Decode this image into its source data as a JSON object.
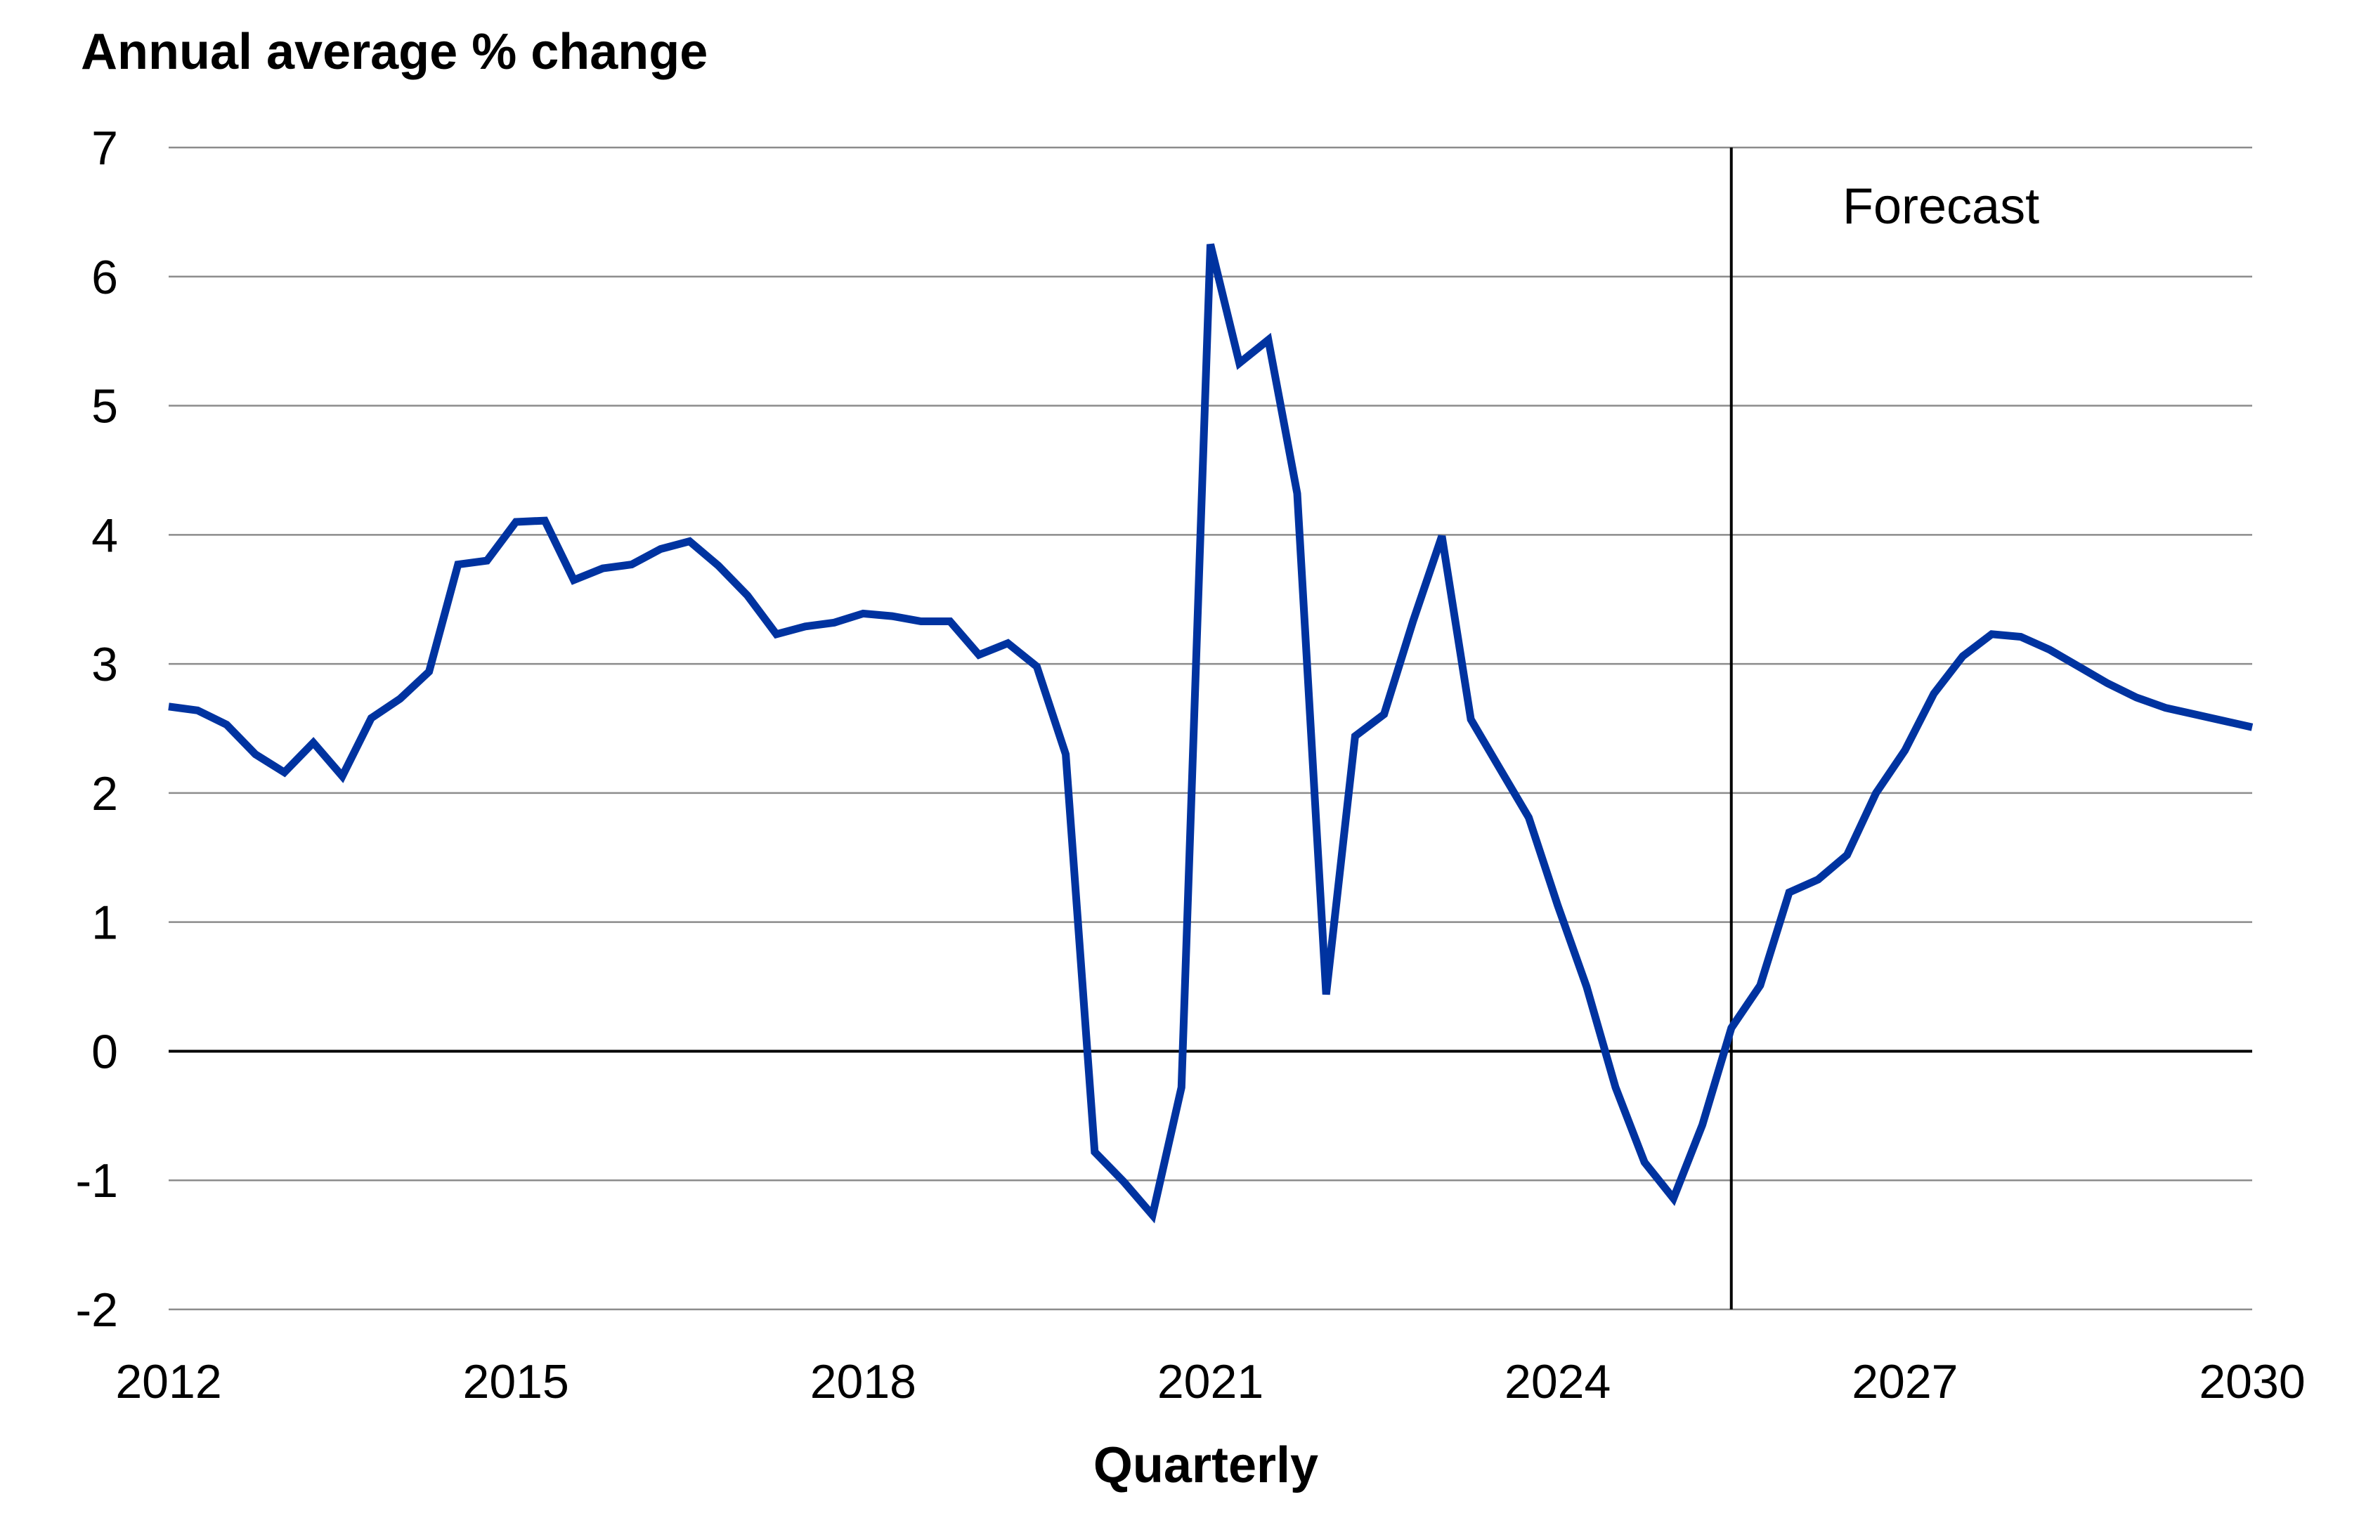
{
  "chart_data": {
    "type": "line",
    "ylabel": "Annual average % change",
    "xlabel": "Quarterly",
    "annotation": "Forecast",
    "forecast_start": 2025.5,
    "ylim": [
      -2,
      7
    ],
    "xlim": [
      2012,
      2030
    ],
    "y_ticks": [
      "7",
      "6",
      "5",
      "4",
      "3",
      "2",
      "1",
      "0",
      "-1",
      "-2"
    ],
    "x_ticks": [
      "2012",
      "2015",
      "2018",
      "2021",
      "2024",
      "2027",
      "2030"
    ],
    "grid": true,
    "line_color": "#0033a0",
    "series": [
      {
        "x": [
          2012.0,
          2012.25,
          2012.5,
          2012.75,
          2013.0,
          2013.25,
          2013.5,
          2013.75,
          2014.0,
          2014.25,
          2014.5,
          2014.75,
          2015.0,
          2015.25,
          2015.5,
          2015.75,
          2016.0,
          2016.25,
          2016.5,
          2016.75,
          2017.0,
          2017.25,
          2017.5,
          2017.75,
          2018.0,
          2018.25,
          2018.5,
          2018.75,
          2019.0,
          2019.25,
          2019.5,
          2019.75,
          2020.0,
          2020.25,
          2020.5,
          2020.75,
          2021.0,
          2021.25,
          2021.5,
          2021.75,
          2022.0,
          2022.25,
          2022.5,
          2022.75,
          2023.0,
          2023.25,
          2023.5,
          2023.75,
          2024.0,
          2024.25,
          2024.5,
          2024.75,
          2025.0,
          2025.25,
          2025.5,
          2025.75,
          2026.0,
          2026.25,
          2026.5,
          2026.75,
          2027.0,
          2027.25,
          2027.5,
          2027.75,
          2028.0,
          2028.25,
          2028.5,
          2028.75,
          2029.0,
          2029.25,
          2029.5,
          2029.75,
          2030.0
        ],
        "values": [
          2.67,
          2.64,
          2.53,
          2.3,
          2.16,
          2.39,
          2.13,
          2.58,
          2.73,
          2.94,
          3.77,
          3.8,
          4.1,
          4.11,
          3.65,
          3.74,
          3.77,
          3.89,
          3.95,
          3.76,
          3.53,
          3.23,
          3.29,
          3.32,
          3.39,
          3.37,
          3.33,
          3.33,
          3.07,
          3.16,
          2.98,
          2.3,
          -0.78,
          -1.01,
          -1.27,
          -0.28,
          6.25,
          5.33,
          5.51,
          4.32,
          0.44,
          2.44,
          2.61,
          3.33,
          3.99,
          2.57,
          2.19,
          1.81,
          1.13,
          0.5,
          -0.28,
          -0.86,
          -1.14,
          -0.57,
          0.18,
          0.51,
          1.23,
          1.33,
          1.52,
          2.0,
          2.33,
          2.77,
          3.06,
          3.23,
          3.21,
          3.11,
          2.98,
          2.85,
          2.74,
          2.66,
          2.61,
          2.56,
          2.51
        ]
      }
    ]
  }
}
